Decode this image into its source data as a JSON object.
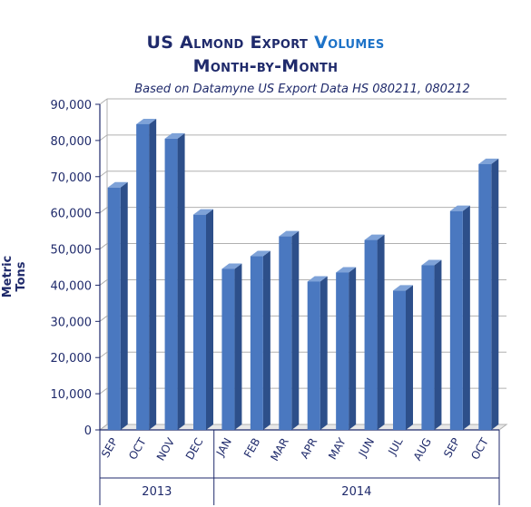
{
  "colors": {
    "title": "#1f2a6b",
    "title_accent": "#1e73c8",
    "bar_front": "#4a78c0",
    "bar_side": "#2d4f8a",
    "bar_top": "#7ea2d8",
    "grid": "#b0b0b0",
    "axis": "#1f2a6b"
  },
  "chart_data": {
    "type": "bar",
    "title_part1": "US Almond Export",
    "title_part2": "Volumes",
    "title_line2": "Month-by-Month",
    "subtitle": "Based on Datamyne US Export Data HS 080211, 080212",
    "ylabel": "Metric Tons",
    "xlabel": "",
    "ylim": [
      0,
      90000
    ],
    "yticks": [
      "0",
      "10,000",
      "20,000",
      "30,000",
      "40,000",
      "50,000",
      "60,000",
      "70,000",
      "80,000",
      "90,000"
    ],
    "grid": true,
    "legend": "none",
    "categories": [
      "SEP",
      "OCT",
      "NOV",
      "DEC",
      "JAN",
      "FEB",
      "MAR",
      "APR",
      "MAY",
      "JUN",
      "JUL",
      "AUG",
      "SEP",
      "OCT"
    ],
    "values": [
      67000,
      84500,
      80500,
      59500,
      44500,
      48000,
      53500,
      41000,
      43500,
      52500,
      38500,
      45500,
      60500,
      73500
    ],
    "groups": [
      {
        "label": "2013",
        "count": 4
      },
      {
        "label": "2014",
        "count": 10
      }
    ]
  }
}
